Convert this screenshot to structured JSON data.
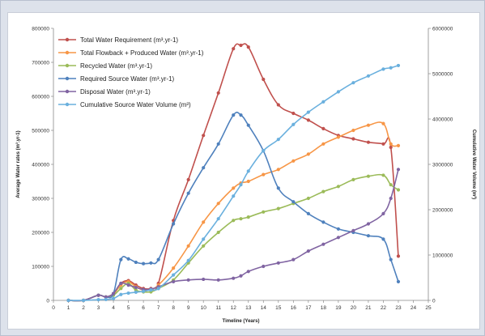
{
  "chart_data": {
    "type": "line",
    "xlabel": "Timeline (Years)",
    "ylabel": "Average Water rates (m³.yr-1)",
    "y2label": "Cumulative Water Volume (m³)",
    "xlim": [
      0,
      25
    ],
    "ylim": [
      0,
      800000
    ],
    "y2lim": [
      0,
      6000000
    ],
    "x_ticks": [
      "0",
      "1",
      "2",
      "3",
      "4",
      "5",
      "6",
      "7",
      "8",
      "9",
      "10",
      "11",
      "12",
      "13",
      "14",
      "15",
      "16",
      "17",
      "18",
      "19",
      "20",
      "21",
      "22",
      "23",
      "24",
      "25"
    ],
    "y_ticks": [
      "0",
      "100000",
      "200000",
      "300000",
      "400000",
      "500000",
      "600000",
      "700000",
      "800000"
    ],
    "y2_ticks": [
      "0",
      "1000000",
      "2000000",
      "3000000",
      "4000000",
      "5000000",
      "6000000"
    ],
    "grid": false,
    "legend_position": "top-left",
    "x": [
      1,
      2,
      3,
      3.5,
      4,
      4.5,
      5,
      5.5,
      6,
      6.5,
      7,
      8,
      9,
      10,
      11,
      12,
      12.5,
      13,
      14,
      15,
      16,
      17,
      18,
      19,
      20,
      21,
      22,
      22.5,
      23
    ],
    "series": [
      {
        "name": "Total Water Requirement (m³.yr-1)",
        "color": "#c0504d",
        "axis": "left",
        "values": [
          0,
          0,
          15000,
          10000,
          20000,
          50000,
          58000,
          45000,
          35000,
          35000,
          50000,
          235000,
          355000,
          485000,
          610000,
          740000,
          750000,
          745000,
          650000,
          575000,
          550000,
          530000,
          505000,
          485000,
          475000,
          465000,
          460000,
          450000,
          130000
        ]
      },
      {
        "name": "Total Flowback + Produced Water (m³.yr-1)",
        "color": "#f79646",
        "axis": "left",
        "values": [
          0,
          0,
          15000,
          10000,
          18000,
          45000,
          55000,
          40000,
          30000,
          32000,
          45000,
          95000,
          160000,
          230000,
          285000,
          330000,
          345000,
          350000,
          370000,
          385000,
          410000,
          430000,
          460000,
          480000,
          500000,
          515000,
          520000,
          460000,
          455000
        ]
      },
      {
        "name": "Recycled Water (m³.yr-1)",
        "color": "#9bbb59",
        "axis": "left",
        "values": [
          0,
          0,
          15000,
          10000,
          15000,
          35000,
          50000,
          30000,
          25000,
          25000,
          35000,
          60000,
          110000,
          160000,
          200000,
          235000,
          240000,
          245000,
          260000,
          270000,
          285000,
          300000,
          320000,
          335000,
          355000,
          365000,
          368000,
          340000,
          325000
        ]
      },
      {
        "name": "Required Source Water (m³.yr-1)",
        "color": "#4f81bd",
        "axis": "left",
        "values": [
          0,
          0,
          15000,
          10000,
          20000,
          120000,
          122000,
          112000,
          108000,
          110000,
          120000,
          225000,
          315000,
          390000,
          460000,
          545000,
          545000,
          515000,
          440000,
          330000,
          290000,
          255000,
          230000,
          210000,
          200000,
          190000,
          180000,
          120000,
          55000
        ]
      },
      {
        "name": "Disposal Water (m³.yr-1)",
        "color": "#8064a2",
        "axis": "left",
        "values": [
          0,
          0,
          15000,
          10000,
          20000,
          50000,
          45000,
          38000,
          32000,
          33000,
          40000,
          55000,
          60000,
          62000,
          60000,
          65000,
          72000,
          85000,
          100000,
          110000,
          120000,
          145000,
          165000,
          185000,
          205000,
          225000,
          255000,
          300000,
          385000
        ]
      },
      {
        "name": "Cumulative Source Water Volume (m³)",
        "color": "#6ab0de",
        "axis": "right",
        "values": [
          0,
          0,
          15000,
          20000,
          40000,
          130000,
          160000,
          180000,
          200000,
          230000,
          260000,
          560000,
          880000,
          1350000,
          1800000,
          2300000,
          2550000,
          2850000,
          3300000,
          3550000,
          3880000,
          4150000,
          4380000,
          4600000,
          4800000,
          4950000,
          5100000,
          5130000,
          5180000
        ]
      }
    ]
  }
}
